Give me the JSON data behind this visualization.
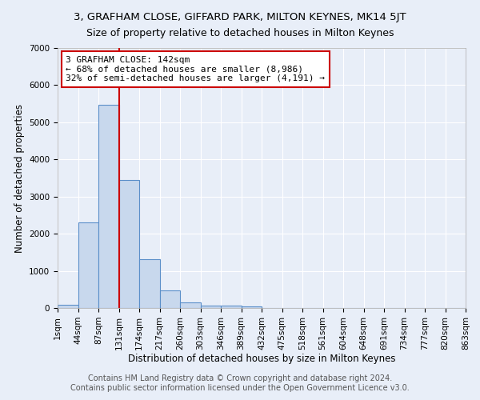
{
  "title1": "3, GRAFHAM CLOSE, GIFFARD PARK, MILTON KEYNES, MK14 5JT",
  "title2": "Size of property relative to detached houses in Milton Keynes",
  "xlabel": "Distribution of detached houses by size in Milton Keynes",
  "ylabel": "Number of detached properties",
  "footer1": "Contains HM Land Registry data © Crown copyright and database right 2024.",
  "footer2": "Contains public sector information licensed under the Open Government Licence v3.0.",
  "bin_labels": [
    "1sqm",
    "44sqm",
    "87sqm",
    "131sqm",
    "174sqm",
    "217sqm",
    "260sqm",
    "303sqm",
    "346sqm",
    "389sqm",
    "432sqm",
    "475sqm",
    "518sqm",
    "561sqm",
    "604sqm",
    "648sqm",
    "691sqm",
    "734sqm",
    "777sqm",
    "820sqm",
    "863sqm"
  ],
  "bar_values": [
    80,
    2300,
    5480,
    3450,
    1310,
    470,
    155,
    75,
    55,
    45,
    0,
    0,
    0,
    0,
    0,
    0,
    0,
    0,
    0,
    0
  ],
  "bar_color": "#c8d8ed",
  "bar_edge_color": "#5b8fc9",
  "vline_x": 3.0,
  "vline_color": "#cc0000",
  "annotation_box_text": "3 GRAFHAM CLOSE: 142sqm\n← 68% of detached houses are smaller (8,986)\n32% of semi-detached houses are larger (4,191) →",
  "ylim": [
    0,
    7000
  ],
  "yticks": [
    0,
    1000,
    2000,
    3000,
    4000,
    5000,
    6000,
    7000
  ],
  "bg_color": "#e8eef8",
  "plot_bg_color": "#e8eef8",
  "grid_color": "#ffffff",
  "title1_fontsize": 9.5,
  "title2_fontsize": 9,
  "xlabel_fontsize": 8.5,
  "ylabel_fontsize": 8.5,
  "tick_fontsize": 7.5,
  "footer_fontsize": 7,
  "annot_fontsize": 8
}
